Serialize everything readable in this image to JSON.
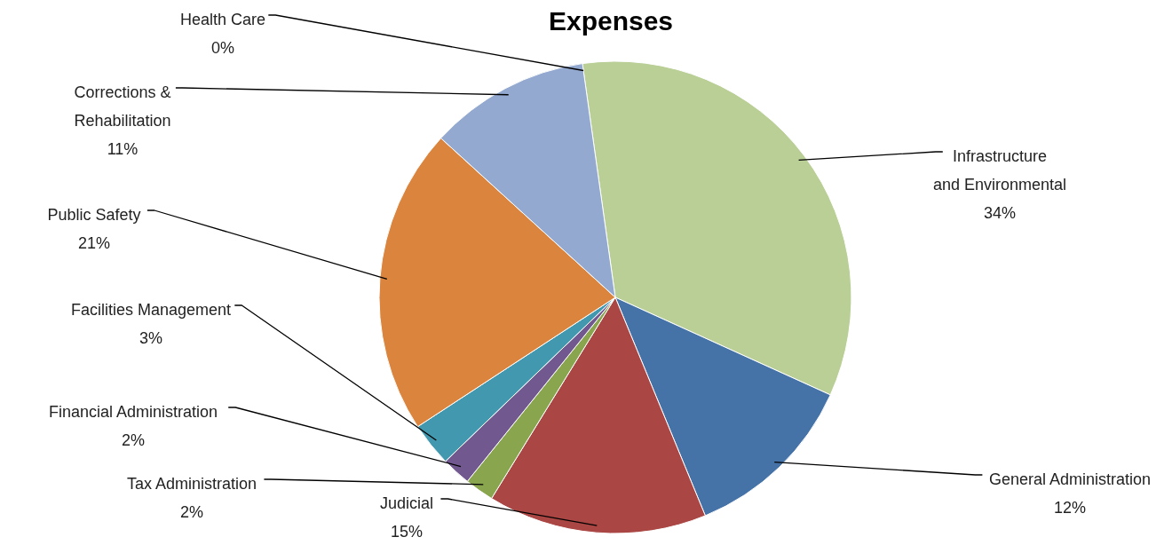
{
  "chart_data": {
    "type": "pie",
    "title": "Expenses",
    "categories": [
      "Infrastructure and Environmental",
      "General Administration",
      "Judicial",
      "Tax Administration",
      "Financial Administration",
      "Facilities Management",
      "Public Safety",
      "Corrections & Rehabilitation",
      "Health Care"
    ],
    "values": [
      34,
      12,
      15,
      2,
      2,
      3,
      21,
      11,
      0
    ],
    "value_labels": [
      "34%",
      "12%",
      "15%",
      "2%",
      "2%",
      "3%",
      "21%",
      "11%",
      "0%"
    ],
    "colors": [
      "#b9cf96",
      "#4572a7",
      "#aa4643",
      "#89a54e",
      "#71588f",
      "#4198af",
      "#db843d",
      "#93a9cf",
      "#d19392"
    ]
  }
}
